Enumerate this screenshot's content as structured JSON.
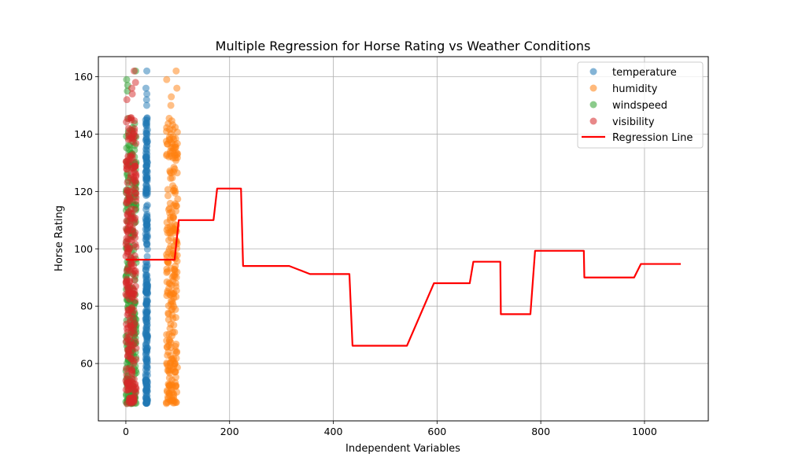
{
  "chart_data": {
    "type": "scatter",
    "title": "Multiple Regression for Horse Rating vs Weather Conditions",
    "xlabel": "Independent Variables",
    "ylabel": "Horse Rating",
    "xlim": [
      -53,
      1123
    ],
    "ylim": [
      40,
      167
    ],
    "xticks": [
      0,
      200,
      400,
      600,
      800,
      1000
    ],
    "yticks": [
      60,
      80,
      100,
      120,
      140,
      160
    ],
    "grid": true,
    "legend_position": "top-right",
    "series": [
      {
        "name": "temperature",
        "kind": "scatter",
        "color": "#1f77b4",
        "x_range": [
          38,
          42
        ],
        "y_range": [
          46,
          162
        ],
        "y_top_points": [
          162,
          156,
          154,
          152,
          150
        ]
      },
      {
        "name": "humidity",
        "kind": "scatter",
        "color": "#ff7f0e",
        "x_range": [
          78,
          100
        ],
        "y_range": [
          46,
          162
        ],
        "y_top_points": [
          162,
          159,
          156,
          153,
          150
        ]
      },
      {
        "name": "windspeed",
        "kind": "scatter",
        "color": "#2ca02c",
        "x_range": [
          0,
          20
        ],
        "y_range": [
          46,
          162
        ],
        "y_top_points": [
          162,
          159,
          157,
          155
        ]
      },
      {
        "name": "visibility",
        "kind": "scatter",
        "color": "#d62728",
        "x_range": [
          0,
          20
        ],
        "y_range": [
          46,
          162
        ],
        "y_top_points": [
          162,
          158,
          156,
          154,
          152
        ]
      }
    ],
    "regression_line": {
      "name": "Regression Line",
      "color": "#ff0000",
      "x": [
        0,
        94,
        102,
        169,
        176,
        222,
        226,
        315,
        355,
        431,
        437,
        542,
        594,
        663,
        670,
        722,
        723,
        780,
        789,
        883,
        884,
        980,
        993,
        1070
      ],
      "y": [
        96.2,
        96.2,
        110,
        110,
        121,
        121,
        94,
        94,
        91.2,
        91.2,
        66.2,
        66.2,
        88,
        88,
        95.5,
        95.5,
        77.2,
        77.2,
        99.3,
        99.3,
        90,
        90,
        94.7,
        94.7
      ]
    }
  }
}
